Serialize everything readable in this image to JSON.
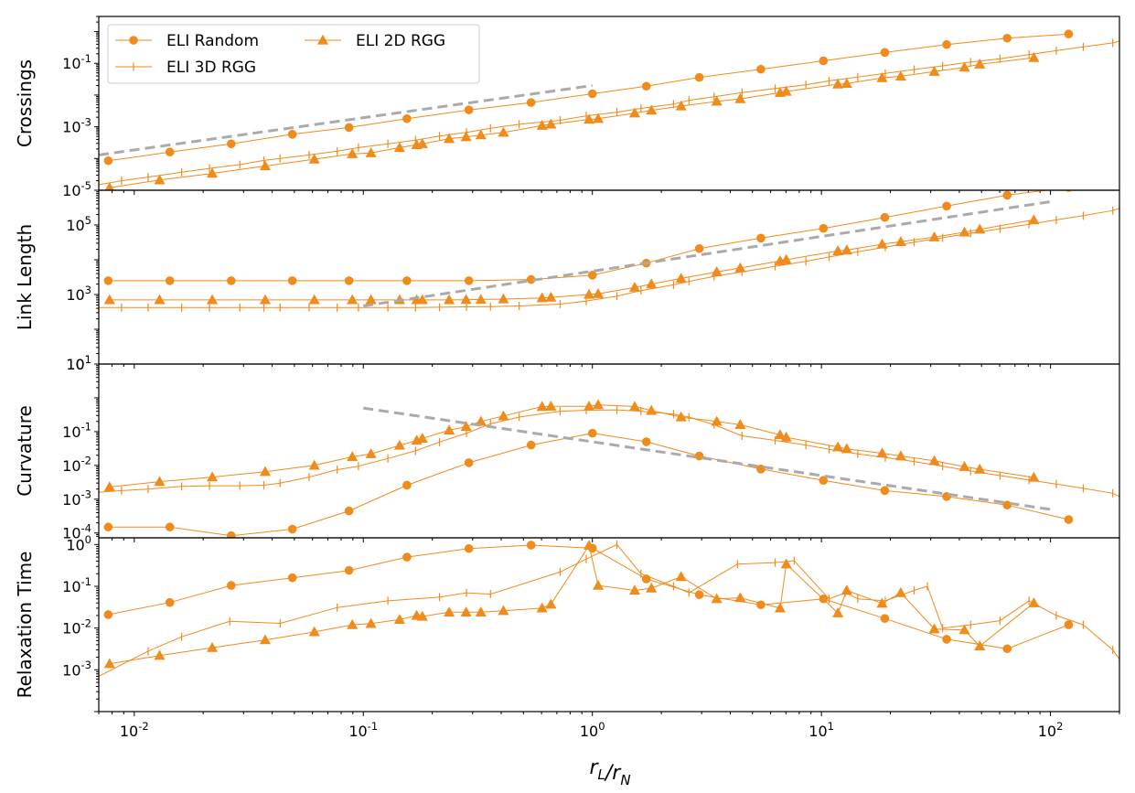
{
  "chart_data": [
    {
      "type": "line",
      "ylabel": "Crossings",
      "xscale": "log",
      "yscale": "log",
      "xlim": [
        0.007,
        200
      ],
      "ylim": [
        1e-05,
        3
      ],
      "yticks": [
        {
          "label": "10",
          "exp": "-5",
          "value": 1e-05
        },
        {
          "label": "10",
          "exp": "-3",
          "value": 0.001
        },
        {
          "label": "10",
          "exp": "-1",
          "value": 0.1
        }
      ],
      "legend": {
        "placement": "top-left",
        "columns": 2
      },
      "series": [
        {
          "name": "ELI Random",
          "marker": "circle",
          "x": [
            0.0077,
            0.0143,
            0.0265,
            0.049,
            0.0866,
            0.155,
            0.289,
            0.54,
            1.0,
            1.72,
            2.93,
            5.44,
            10.2,
            18.9,
            35.2,
            64.7,
            120
          ],
          "y": [
            8.5e-05,
            0.00016,
            0.00029,
            0.00058,
            0.00095,
            0.0018,
            0.0034,
            0.0058,
            0.011,
            0.019,
            0.036,
            0.065,
            0.12,
            0.22,
            0.39,
            0.62,
            0.84
          ]
        },
        {
          "name": "ELI 3D RGG",
          "marker": "tick",
          "x": [
            0.007,
            0.0088,
            0.0115,
            0.0161,
            0.0213,
            0.0289,
            0.0368,
            0.0433,
            0.058,
            0.0769,
            0.0952,
            0.128,
            0.169,
            0.215,
            0.282,
            0.359,
            0.479,
            0.723,
            0.94,
            1.28,
            1.63,
            2.26,
            2.64,
            3.4,
            4.5,
            6.28,
            8.55,
            10.8,
            14.4,
            19.0,
            25.4,
            33.8,
            44.8,
            60.2,
            80.6,
            106,
            139,
            187,
            200
          ],
          "y": [
            1.5e-05,
            2e-05,
            2.6e-05,
            3.7e-05,
            4.9e-05,
            6.4e-05,
            8.7e-05,
            0.0001,
            0.00013,
            0.00017,
            0.00022,
            0.00029,
            0.00038,
            0.00051,
            0.00067,
            0.0009,
            0.0012,
            0.0016,
            0.0022,
            0.0029,
            0.0038,
            0.0052,
            0.0068,
            0.0089,
            0.012,
            0.016,
            0.021,
            0.028,
            0.037,
            0.048,
            0.064,
            0.083,
            0.11,
            0.14,
            0.19,
            0.25,
            0.33,
            0.44,
            0.5
          ]
        },
        {
          "name": "ELI 2D RGG",
          "marker": "triangle",
          "x": [
            0.0078,
            0.0129,
            0.0219,
            0.0373,
            0.0611,
            0.0895,
            0.108,
            0.144,
            0.171,
            0.181,
            0.237,
            0.281,
            0.326,
            0.409,
            0.603,
            0.659,
            0.967,
            1.06,
            1.53,
            1.81,
            2.44,
            3.49,
            4.42,
            6.6,
            7.02,
            11.8,
            12.9,
            18.4,
            22.2,
            31.1,
            42.1,
            49.1,
            84.6
          ],
          "y": [
            1.2e-05,
            2.1e-05,
            3.4e-05,
            5.8e-05,
            9.5e-05,
            0.00014,
            0.00015,
            0.00022,
            0.00027,
            0.00029,
            0.00042,
            0.00048,
            0.00055,
            0.00066,
            0.0011,
            0.0012,
            0.0017,
            0.0018,
            0.0027,
            0.0033,
            0.0045,
            0.0063,
            0.0076,
            0.012,
            0.013,
            0.022,
            0.023,
            0.035,
            0.039,
            0.055,
            0.075,
            0.094,
            0.15
          ]
        },
        {
          "name": "",
          "style": "dashed-gray",
          "x": [
            0.007,
            1.0
          ],
          "y": [
            0.00013,
            0.02
          ]
        }
      ]
    },
    {
      "type": "line",
      "ylabel": "Link Length",
      "xscale": "log",
      "yscale": "log",
      "xlim": [
        0.007,
        200
      ],
      "ylim": [
        10,
        1000000.0
      ],
      "yticks": [
        {
          "label": "10",
          "exp": "1",
          "value": 10
        },
        {
          "label": "10",
          "exp": "3",
          "value": 1000
        },
        {
          "label": "10",
          "exp": "5",
          "value": 100000
        }
      ],
      "series": [
        {
          "name": "ELI Random",
          "marker": "circle",
          "x": [
            0.0077,
            0.0143,
            0.0265,
            0.049,
            0.0866,
            0.155,
            0.289,
            0.54,
            1.0,
            1.72,
            2.93,
            5.44,
            10.2,
            18.9,
            35.2,
            64.7,
            120
          ],
          "y": [
            2500,
            2500,
            2500,
            2500,
            2500,
            2500,
            2500,
            2700,
            3600,
            8000,
            21000,
            42000,
            80000,
            165000,
            350000,
            720000,
            1200000
          ]
        },
        {
          "name": "ELI 3D RGG",
          "marker": "tick",
          "x": [
            0.007,
            0.0088,
            0.0115,
            0.0161,
            0.0213,
            0.0289,
            0.0368,
            0.0433,
            0.058,
            0.0769,
            0.0952,
            0.128,
            0.169,
            0.215,
            0.282,
            0.359,
            0.479,
            0.723,
            0.94,
            1.28,
            1.63,
            2.26,
            2.64,
            3.4,
            4.5,
            6.28,
            8.55,
            10.8,
            14.4,
            19.0,
            25.4,
            33.8,
            44.8,
            60.2,
            80.6,
            106,
            139,
            187,
            200
          ],
          "y": [
            420,
            420,
            420,
            420,
            420,
            420,
            420,
            420,
            420,
            420,
            420,
            420,
            420,
            430,
            440,
            450,
            470,
            530,
            650,
            900,
            1300,
            1900,
            2400,
            3300,
            4500,
            6500,
            9000,
            12000,
            17000,
            23000,
            32000,
            43000,
            58000,
            78000,
            105000,
            140000,
            185000,
            260000,
            300000
          ]
        },
        {
          "name": "ELI 2D RGG",
          "marker": "triangle",
          "x": [
            0.0078,
            0.0129,
            0.0219,
            0.0373,
            0.0611,
            0.0895,
            0.108,
            0.144,
            0.171,
            0.181,
            0.237,
            0.281,
            0.326,
            0.409,
            0.603,
            0.659,
            0.967,
            1.06,
            1.53,
            1.81,
            2.44,
            3.49,
            4.42,
            6.6,
            7.02,
            11.8,
            12.9,
            18.4,
            22.2,
            31.1,
            42.1,
            49.1,
            84.6
          ],
          "y": [
            700,
            700,
            700,
            700,
            700,
            700,
            700,
            700,
            700,
            700,
            700,
            710,
            720,
            740,
            800,
            830,
            1000,
            1050,
            1600,
            2000,
            2900,
            4500,
            5800,
            9300,
            10000,
            18000,
            19000,
            28000,
            33000,
            45000,
            62000,
            75000,
            140000
          ]
        },
        {
          "name": "",
          "style": "dashed-gray",
          "x": [
            0.1,
            100
          ],
          "y": [
            470,
            470000
          ]
        }
      ]
    },
    {
      "type": "line",
      "ylabel": "Curvature",
      "xscale": "log",
      "yscale": "log",
      "xlim": [
        0.007,
        200
      ],
      "ylim": [
        7.2e-05,
        10
      ],
      "yticks": [
        {
          "label": "10",
          "exp": "-4",
          "value": 0.0001
        },
        {
          "label": "10",
          "exp": "-3",
          "value": 0.001
        },
        {
          "label": "10",
          "exp": "-2",
          "value": 0.01
        },
        {
          "label": "10",
          "exp": "-1",
          "value": 0.1
        },
        {
          "label": "10",
          "exp": "1",
          "value": 10
        }
      ],
      "series": [
        {
          "name": "ELI Random",
          "marker": "circle",
          "x": [
            0.0077,
            0.0143,
            0.0265,
            0.049,
            0.0866,
            0.155,
            0.289,
            0.54,
            1.0,
            1.72,
            2.93,
            5.44,
            10.2,
            18.9,
            35.2,
            64.7,
            120
          ],
          "y": [
            0.00015,
            0.00015,
            8.3e-05,
            0.00013,
            0.00045,
            0.0026,
            0.012,
            0.04,
            0.09,
            0.05,
            0.019,
            0.0078,
            0.0036,
            0.0018,
            0.0012,
            0.00067,
            0.00025
          ]
        },
        {
          "name": "ELI 3D RGG",
          "marker": "tick",
          "x": [
            0.007,
            0.0088,
            0.0115,
            0.0161,
            0.0213,
            0.0289,
            0.0368,
            0.0433,
            0.058,
            0.0769,
            0.0952,
            0.128,
            0.169,
            0.215,
            0.282,
            0.359,
            0.479,
            0.723,
            0.94,
            1.28,
            1.63,
            2.26,
            2.64,
            3.4,
            4.5,
            6.28,
            8.55,
            10.8,
            14.4,
            19.0,
            25.4,
            33.8,
            44.8,
            60.2,
            80.6,
            106,
            139,
            187,
            200
          ],
          "y": [
            0.0016,
            0.0018,
            0.002,
            0.0024,
            0.0025,
            0.0025,
            0.0026,
            0.003,
            0.0045,
            0.0075,
            0.0095,
            0.016,
            0.027,
            0.049,
            0.09,
            0.17,
            0.27,
            0.4,
            0.43,
            0.44,
            0.4,
            0.33,
            0.27,
            0.16,
            0.075,
            0.055,
            0.04,
            0.03,
            0.022,
            0.017,
            0.013,
            0.0095,
            0.0068,
            0.005,
            0.0037,
            0.0028,
            0.0021,
            0.0015,
            0.0012
          ]
        },
        {
          "name": "ELI 2D RGG",
          "marker": "triangle",
          "x": [
            0.0078,
            0.0129,
            0.0219,
            0.0373,
            0.0611,
            0.0895,
            0.108,
            0.144,
            0.171,
            0.181,
            0.237,
            0.281,
            0.326,
            0.409,
            0.603,
            0.659,
            0.967,
            1.06,
            1.53,
            1.81,
            2.44,
            3.49,
            4.42,
            6.6,
            7.02,
            11.8,
            12.9,
            18.4,
            22.2,
            31.1,
            42.1,
            49.1,
            84.6
          ],
          "y": [
            0.0023,
            0.0033,
            0.0045,
            0.0065,
            0.01,
            0.018,
            0.022,
            0.039,
            0.055,
            0.063,
            0.11,
            0.14,
            0.2,
            0.29,
            0.55,
            0.56,
            0.56,
            0.62,
            0.55,
            0.42,
            0.27,
            0.2,
            0.16,
            0.08,
            0.068,
            0.035,
            0.031,
            0.023,
            0.019,
            0.0137,
            0.0092,
            0.0077,
            0.0044
          ]
        },
        {
          "name": "",
          "style": "dashed-gray",
          "x": [
            0.1,
            100
          ],
          "y": [
            0.5,
            0.0005
          ]
        }
      ]
    },
    {
      "type": "line",
      "ylabel": "Relaxation Time",
      "xlabel": "r_L/r_N",
      "xscale": "log",
      "yscale": "log",
      "xlim": [
        0.007,
        200
      ],
      "ylim": [
        0.0001,
        1.45
      ],
      "yticks": [
        {
          "label": "10",
          "exp": "-3",
          "value": 0.001
        },
        {
          "label": "10",
          "exp": "-2",
          "value": 0.01
        },
        {
          "label": "10",
          "exp": "-1",
          "value": 0.1
        },
        {
          "label": "10",
          "exp": "0",
          "value": 1
        }
      ],
      "xticks": [
        {
          "label": "10",
          "exp": "-2",
          "value": 0.01
        },
        {
          "label": "10",
          "exp": "-1",
          "value": 0.1
        },
        {
          "label": "10",
          "exp": "0",
          "value": 1
        },
        {
          "label": "10",
          "exp": "1",
          "value": 10
        },
        {
          "label": "10",
          "exp": "2",
          "value": 100
        }
      ],
      "series": [
        {
          "name": "ELI Random",
          "marker": "circle",
          "x": [
            0.0077,
            0.0143,
            0.0265,
            0.049,
            0.0866,
            0.155,
            0.289,
            0.54,
            1.0,
            1.72,
            2.93,
            5.44,
            10.2,
            18.9,
            35.2,
            64.7,
            120
          ],
          "y": [
            0.021,
            0.041,
            0.105,
            0.16,
            0.24,
            0.5,
            0.8,
            0.97,
            0.82,
            0.15,
            0.063,
            0.036,
            0.05,
            0.017,
            0.0054,
            0.0032,
            0.012
          ]
        },
        {
          "name": "ELI 3D RGG",
          "marker": "tick",
          "x": [
            0.007,
            0.0115,
            0.0161,
            0.0261,
            0.0434,
            0.0769,
            0.128,
            0.215,
            0.282,
            0.359,
            0.723,
            0.94,
            1.28,
            1.63,
            2.26,
            2.64,
            4.3,
            6.28,
            7.6,
            10.8,
            12.7,
            14.4,
            19.0,
            25.4,
            29.0,
            33.8,
            44.8,
            60.2,
            80.6,
            106,
            139,
            187,
            200
          ],
          "y": [
            0.0007,
            0.0028,
            0.0062,
            0.0145,
            0.013,
            0.031,
            0.045,
            0.055,
            0.07,
            0.065,
            0.22,
            0.45,
            1.0,
            0.2,
            0.1,
            0.07,
            0.34,
            0.37,
            0.41,
            0.05,
            0.07,
            0.05,
            0.045,
            0.08,
            0.1,
            0.01,
            0.012,
            0.015,
            0.045,
            0.02,
            0.012,
            0.003,
            0.0018
          ]
        },
        {
          "name": "ELI 2D RGG",
          "marker": "triangle",
          "x": [
            0.0078,
            0.0129,
            0.0219,
            0.0373,
            0.0611,
            0.0895,
            0.108,
            0.144,
            0.171,
            0.181,
            0.237,
            0.281,
            0.326,
            0.409,
            0.603,
            0.659,
            0.967,
            1.06,
            1.53,
            1.81,
            2.44,
            3.49,
            4.42,
            6.6,
            7.02,
            11.8,
            12.9,
            18.4,
            22.2,
            31.1,
            42.1,
            49.1,
            84.6
          ],
          "y": [
            0.0014,
            0.0022,
            0.0034,
            0.0052,
            0.0081,
            0.012,
            0.0128,
            0.016,
            0.02,
            0.019,
            0.024,
            0.024,
            0.024,
            0.026,
            0.03,
            0.037,
            0.95,
            0.105,
            0.08,
            0.09,
            0.17,
            0.05,
            0.053,
            0.03,
            0.34,
            0.023,
            0.08,
            0.039,
            0.07,
            0.0095,
            0.009,
            0.0037,
            0.04
          ]
        }
      ]
    }
  ],
  "legend": [
    {
      "name": "ELI Random",
      "marker": "circle"
    },
    {
      "name": "ELI 3D RGG",
      "marker": "tick"
    },
    {
      "name": "ELI 2D RGG",
      "marker": "triangle"
    }
  ],
  "colors": {
    "series": "#f28a1a",
    "marker_fill": "#ef8c1c",
    "reference": "#aaaaaa",
    "axes": "#000000"
  }
}
